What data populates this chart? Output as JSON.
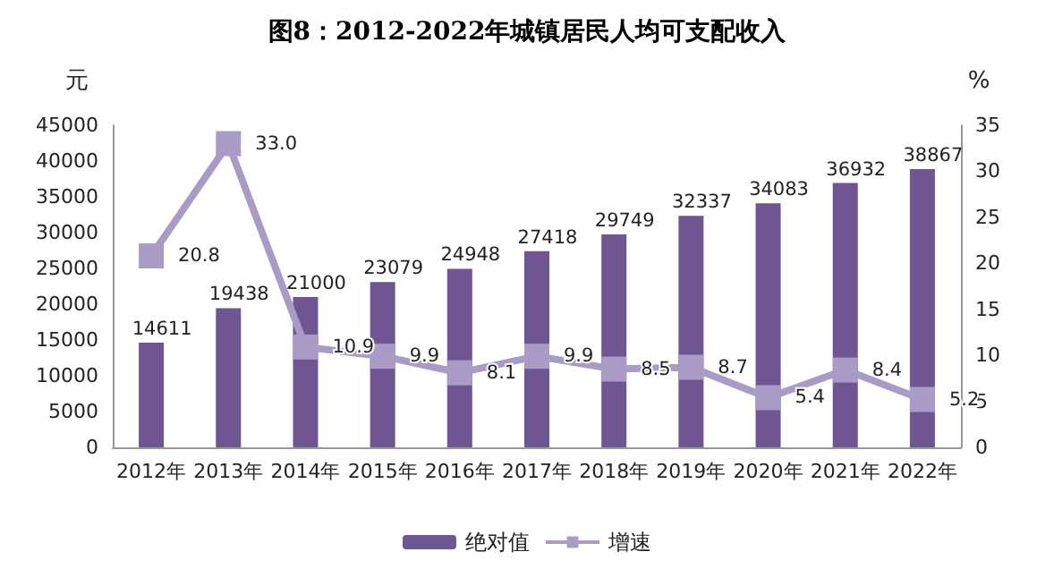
{
  "chart_data": {
    "type": "bar",
    "title": "图8：2012-2022年城镇居民人均可支配收入",
    "ylabel": "元",
    "y2label": "%",
    "categories": [
      "2012年",
      "2013年",
      "2014年",
      "2015年",
      "2016年",
      "2017年",
      "2018年",
      "2019年",
      "2020年",
      "2021年",
      "2022年"
    ],
    "series": [
      {
        "name": "绝对值",
        "color": "#6f5592",
        "values": [
          14611,
          19438,
          21000,
          23079,
          24948,
          27418,
          29749,
          32337,
          34083,
          36932,
          38867
        ]
      },
      {
        "name": "增速",
        "type": "line",
        "axis": "y2",
        "color": "#a99bc6",
        "marker": "square",
        "values": [
          20.8,
          33.0,
          10.9,
          9.9,
          8.1,
          9.9,
          8.5,
          8.7,
          5.4,
          8.4,
          5.2
        ],
        "value_labels": [
          "20.8",
          "33.0",
          "10.9",
          "9.9",
          "8.1",
          "9.9",
          "8.5",
          "8.7",
          "5.4",
          "8.4",
          "5.2"
        ]
      }
    ],
    "ylim": [
      0,
      45000
    ],
    "yticks": [
      0,
      5000,
      10000,
      15000,
      20000,
      25000,
      30000,
      35000,
      40000,
      45000
    ],
    "y2lim": [
      0,
      35
    ],
    "y2ticks": [
      0,
      5,
      10,
      15,
      20,
      25,
      30,
      35
    ],
    "data_labels": true,
    "grid": false,
    "legend": "bottom"
  }
}
